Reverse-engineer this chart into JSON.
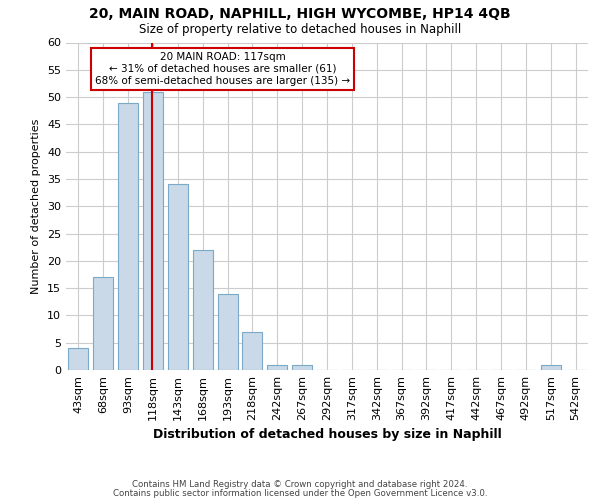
{
  "title1": "20, MAIN ROAD, NAPHILL, HIGH WYCOMBE, HP14 4QB",
  "title2": "Size of property relative to detached houses in Naphill",
  "xlabel": "Distribution of detached houses by size in Naphill",
  "ylabel": "Number of detached properties",
  "footnote1": "Contains HM Land Registry data © Crown copyright and database right 2024.",
  "footnote2": "Contains public sector information licensed under the Open Government Licence v3.0.",
  "bar_labels": [
    "43sqm",
    "68sqm",
    "93sqm",
    "118sqm",
    "143sqm",
    "168sqm",
    "193sqm",
    "218sqm",
    "242sqm",
    "267sqm",
    "292sqm",
    "317sqm",
    "342sqm",
    "367sqm",
    "392sqm",
    "417sqm",
    "442sqm",
    "467sqm",
    "492sqm",
    "517sqm",
    "542sqm"
  ],
  "bar_values": [
    4,
    17,
    49,
    51,
    34,
    22,
    14,
    7,
    1,
    1,
    0,
    0,
    0,
    0,
    0,
    0,
    0,
    0,
    0,
    1,
    0
  ],
  "bar_color": "#c9d9e8",
  "bar_edge_color": "#7aaac8",
  "grid_color": "#cccccc",
  "property_line_label": "20 MAIN ROAD: 117sqm",
  "annotation_line1": "← 31% of detached houses are smaller (61)",
  "annotation_line2": "68% of semi-detached houses are larger (135) →",
  "annotation_box_color": "#ffffff",
  "annotation_box_edge": "#cc0000",
  "vline_color": "#cc0000",
  "ylim": [
    0,
    60
  ],
  "yticks": [
    0,
    5,
    10,
    15,
    20,
    25,
    30,
    35,
    40,
    45,
    50,
    55,
    60
  ],
  "background_color": "#ffffff",
  "vline_pos": 2.96
}
